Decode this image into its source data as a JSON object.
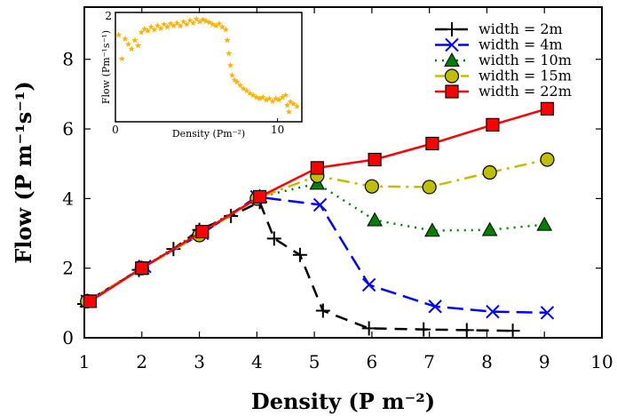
{
  "chart_data": {
    "main": {
      "type": "line",
      "xlabel": "Density (P m⁻²)",
      "ylabel": "Flow (P m⁻¹s⁻¹)",
      "xlim": [
        1,
        10
      ],
      "ylim": [
        0,
        9.5
      ],
      "xticks": [
        "1",
        "2",
        "3",
        "4",
        "5",
        "6",
        "7",
        "8",
        "9",
        "10"
      ],
      "yticks": [
        "0",
        "2",
        "4",
        "6",
        "8"
      ],
      "legend_position": "top-right",
      "series": [
        {
          "name": "width = 2m",
          "color": "#000000",
          "marker": "plus",
          "dash": "dashed",
          "points": [
            [
              1.0,
              0.97
            ],
            [
              1.95,
              1.95
            ],
            [
              2.55,
              2.55
            ],
            [
              3.0,
              3.1
            ],
            [
              3.55,
              3.5
            ],
            [
              4.05,
              3.9
            ],
            [
              4.3,
              2.85
            ],
            [
              4.75,
              2.38
            ],
            [
              5.15,
              0.78
            ],
            [
              5.95,
              0.27
            ],
            [
              6.9,
              0.24
            ],
            [
              7.65,
              0.22
            ],
            [
              8.45,
              0.2
            ]
          ]
        },
        {
          "name": "width = 4m",
          "color": "#0000ff",
          "marker": "x",
          "dash": "longdash",
          "points": [
            [
              1.05,
              1.05
            ],
            [
              2.05,
              2.05
            ],
            [
              3.05,
              3.0
            ],
            [
              4.0,
              4.05
            ],
            [
              5.1,
              3.82
            ],
            [
              5.95,
              1.52
            ],
            [
              7.1,
              0.9
            ],
            [
              8.1,
              0.75
            ],
            [
              9.05,
              0.72
            ]
          ]
        },
        {
          "name": "width = 10m",
          "color": "#008000",
          "marker": "triangle",
          "dash": "dotted",
          "points": [
            [
              1.05,
              1.05
            ],
            [
              2.0,
              2.0
            ],
            [
              3.0,
              3.05
            ],
            [
              4.05,
              4.05
            ],
            [
              5.05,
              4.43
            ],
            [
              6.05,
              3.38
            ],
            [
              7.05,
              3.08
            ],
            [
              8.05,
              3.1
            ],
            [
              9.0,
              3.25
            ]
          ]
        },
        {
          "name": "width = 15m",
          "color": "#bfbf00",
          "marker": "circle",
          "dash": "dashdot",
          "points": [
            [
              1.05,
              1.05
            ],
            [
              2.0,
              2.0
            ],
            [
              3.0,
              2.95
            ],
            [
              4.0,
              4.0
            ],
            [
              5.05,
              4.65
            ],
            [
              6.0,
              4.35
            ],
            [
              7.0,
              4.33
            ],
            [
              8.05,
              4.75
            ],
            [
              9.05,
              5.12
            ]
          ]
        },
        {
          "name": "width = 22m",
          "color": "#ff0000",
          "marker": "square",
          "dash": "solid",
          "points": [
            [
              1.1,
              1.05
            ],
            [
              2.0,
              2.0
            ],
            [
              3.05,
              3.05
            ],
            [
              4.05,
              4.05
            ],
            [
              5.05,
              4.88
            ],
            [
              6.05,
              5.12
            ],
            [
              7.05,
              5.58
            ],
            [
              8.1,
              6.12
            ],
            [
              9.05,
              6.58
            ]
          ]
        }
      ]
    },
    "inset": {
      "type": "scatter",
      "xlabel": "Density (Pm⁻²)",
      "ylabel": "Flow (Pm⁻¹s⁻¹)",
      "xlim": [
        0,
        11.5
      ],
      "ylim": [
        0.35,
        2.0
      ],
      "xticks": [
        "0",
        "10"
      ],
      "yticks": [
        "2"
      ],
      "color": "#ffb000",
      "marker": "star",
      "points": [
        [
          0.2,
          1.66
        ],
        [
          0.4,
          1.3
        ],
        [
          0.6,
          1.6
        ],
        [
          0.8,
          1.52
        ],
        [
          1.0,
          1.45
        ],
        [
          1.2,
          1.58
        ],
        [
          1.4,
          1.5
        ],
        [
          1.6,
          1.7
        ],
        [
          1.8,
          1.75
        ],
        [
          2.0,
          1.72
        ],
        [
          2.2,
          1.78
        ],
        [
          2.4,
          1.74
        ],
        [
          2.6,
          1.8
        ],
        [
          2.8,
          1.76
        ],
        [
          3.0,
          1.82
        ],
        [
          3.2,
          1.78
        ],
        [
          3.4,
          1.83
        ],
        [
          3.6,
          1.8
        ],
        [
          3.8,
          1.84
        ],
        [
          4.0,
          1.8
        ],
        [
          4.2,
          1.86
        ],
        [
          4.4,
          1.82
        ],
        [
          4.6,
          1.88
        ],
        [
          4.8,
          1.84
        ],
        [
          5.0,
          1.9
        ],
        [
          5.2,
          1.86
        ],
        [
          5.4,
          1.89
        ],
        [
          5.6,
          1.87
        ],
        [
          5.8,
          1.85
        ],
        [
          6.0,
          1.82
        ],
        [
          6.2,
          1.8
        ],
        [
          6.4,
          1.83
        ],
        [
          6.6,
          1.78
        ],
        [
          6.8,
          1.74
        ],
        [
          6.9,
          1.58
        ],
        [
          7.0,
          1.38
        ],
        [
          7.1,
          1.2
        ],
        [
          7.2,
          1.05
        ],
        [
          7.35,
          0.98
        ],
        [
          7.5,
          0.95
        ],
        [
          7.7,
          0.9
        ],
        [
          7.9,
          0.85
        ],
        [
          8.1,
          0.82
        ],
        [
          8.3,
          0.78
        ],
        [
          8.5,
          0.75
        ],
        [
          8.7,
          0.72
        ],
        [
          8.9,
          0.7
        ],
        [
          9.1,
          0.72
        ],
        [
          9.3,
          0.68
        ],
        [
          9.5,
          0.7
        ],
        [
          9.7,
          0.66
        ],
        [
          9.9,
          0.7
        ],
        [
          10.1,
          0.68
        ],
        [
          10.3,
          0.72
        ],
        [
          10.5,
          0.75
        ],
        [
          10.6,
          0.6
        ],
        [
          10.7,
          0.5
        ],
        [
          10.8,
          0.65
        ],
        [
          11.0,
          0.62
        ],
        [
          11.2,
          0.58
        ]
      ]
    }
  }
}
